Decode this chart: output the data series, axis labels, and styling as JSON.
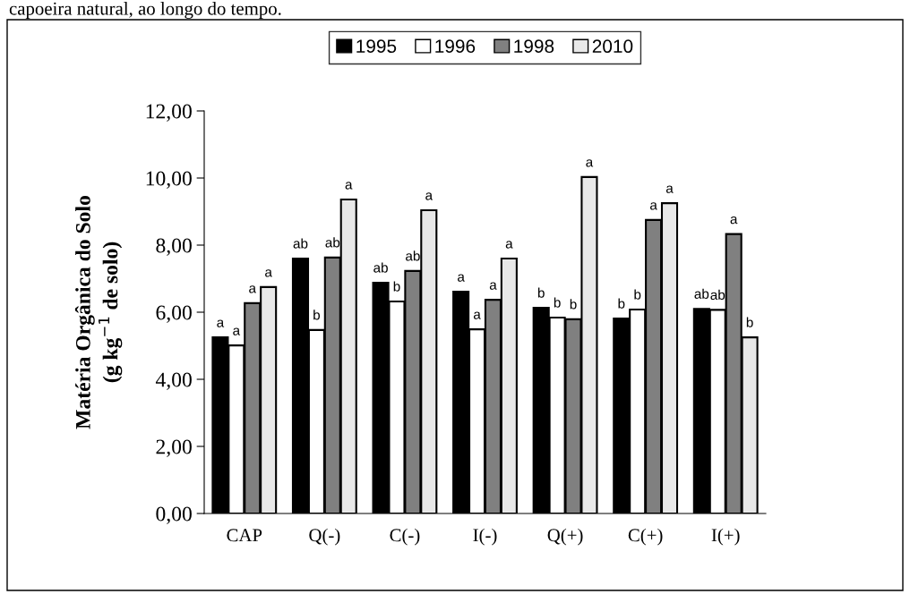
{
  "chart_data": {
    "type": "bar",
    "ylabel": "Matéria Orgânica do Solo\n(g kg$^{−1}$ de solo)",
    "annotations": [
      "capoeira natural, ao longo do tempo."
    ],
    "categories": [
      "CAP",
      "Q(-)",
      "C(-)",
      "I(-)",
      "Q(+)",
      "C(+)",
      "I(+)"
    ],
    "series": [
      {
        "name": "1995",
        "color": "#000000",
        "values": [
          5.25,
          7.6,
          6.88,
          6.61,
          6.13,
          5.81,
          6.1
        ],
        "value_labels": [
          "a",
          "ab",
          "ab",
          "a",
          "b",
          "b",
          "ab"
        ]
      },
      {
        "name": "1996",
        "color": "#ffffff",
        "values": [
          5.01,
          5.47,
          6.32,
          5.49,
          5.84,
          6.08,
          6.07
        ],
        "value_labels": [
          "a",
          "b",
          "b",
          "a",
          "b",
          "b",
          "ab"
        ]
      },
      {
        "name": "1998",
        "color": "#808080",
        "values": [
          6.27,
          7.63,
          7.23,
          6.37,
          5.79,
          8.75,
          8.33
        ],
        "value_labels": [
          "a",
          "ab",
          "ab",
          "a",
          "b",
          "a",
          "a"
        ]
      },
      {
        "name": "2010",
        "color": "#e8e8e8",
        "values": [
          6.75,
          9.36,
          9.04,
          7.6,
          10.03,
          9.25,
          5.25
        ],
        "value_labels": [
          "a",
          "a",
          "a",
          "a",
          "a",
          "a",
          "b"
        ]
      }
    ],
    "ylim": [
      0,
      12
    ],
    "yticks": [
      {
        "value": 0,
        "label": "0,00"
      },
      {
        "value": 2,
        "label": "2,00"
      },
      {
        "value": 4,
        "label": "4,00"
      },
      {
        "value": 6,
        "label": "6,00"
      },
      {
        "value": 8,
        "label": "8,00"
      },
      {
        "value": 10,
        "label": "10,00"
      },
      {
        "value": 12,
        "label": "12,00"
      }
    ],
    "grid": false,
    "legend": "top"
  }
}
